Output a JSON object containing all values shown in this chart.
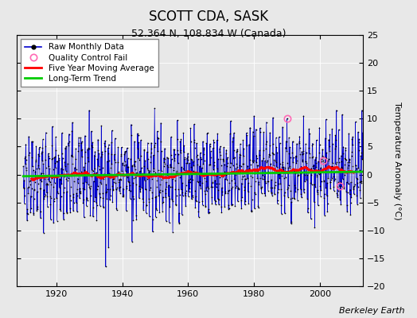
{
  "title": "SCOTT CDA, SASK",
  "subtitle": "52.364 N, 108.834 W (Canada)",
  "ylabel": "Temperature Anomaly (°C)",
  "attribution": "Berkeley Earth",
  "ylim": [
    -20,
    25
  ],
  "yticks": [
    -20,
    -15,
    -10,
    -5,
    0,
    5,
    10,
    15,
    20,
    25
  ],
  "xlim": [
    1908,
    2013
  ],
  "xticks": [
    1920,
    1940,
    1960,
    1980,
    2000
  ],
  "start_year": 1910,
  "end_year": 2013,
  "raw_color": "#0000cc",
  "dot_color": "#000000",
  "qc_color": "#ff69b4",
  "ma_color": "#ff0000",
  "trend_color": "#00cc00",
  "bg_color": "#e8e8e8",
  "grid_color": "#d0d0d0",
  "seed": 42,
  "title_fontsize": 12,
  "subtitle_fontsize": 9,
  "legend_fontsize": 7.5,
  "tick_fontsize": 8,
  "ylabel_fontsize": 8
}
